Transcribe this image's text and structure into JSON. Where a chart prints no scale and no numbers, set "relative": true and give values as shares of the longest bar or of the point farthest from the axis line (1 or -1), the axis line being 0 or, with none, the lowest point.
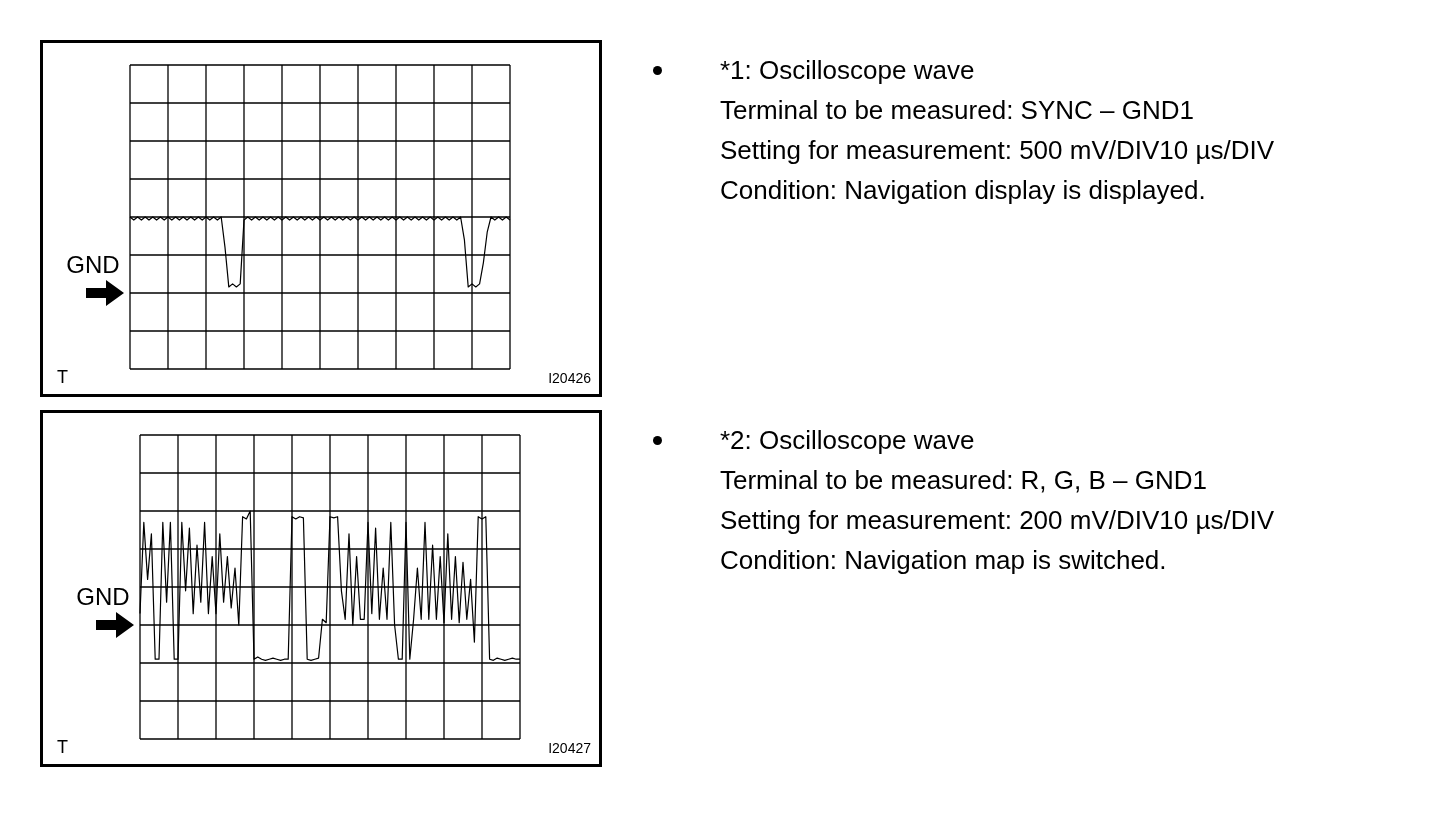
{
  "chart_data": [
    {
      "type": "line",
      "relative": true,
      "grid": true,
      "color": "#000000",
      "categories": [
        null,
        null,
        null,
        null,
        null,
        null,
        null,
        null,
        null,
        null,
        null,
        null,
        null,
        null,
        null,
        null,
        null,
        null,
        null,
        null,
        null,
        null,
        null,
        null,
        null,
        null,
        null,
        null,
        null,
        null,
        null,
        null,
        null,
        null,
        null,
        null,
        null,
        null,
        null,
        null,
        null,
        null,
        null,
        null,
        null,
        null,
        null,
        null,
        null,
        null,
        null,
        null,
        null,
        null,
        null,
        null,
        null,
        null,
        null,
        null,
        null,
        null,
        null,
        null,
        null,
        null,
        null,
        null,
        null,
        null,
        null,
        null,
        null,
        null,
        null,
        null,
        null,
        null,
        null,
        null,
        null,
        null,
        null,
        null,
        null,
        null,
        null,
        null,
        null,
        null,
        null,
        null,
        null,
        null,
        null,
        null,
        null,
        null,
        null,
        null,
        null
      ],
      "values": [
        1,
        0.96,
        1,
        0.96,
        1,
        0.96,
        1,
        0.96,
        1,
        0.96,
        1,
        0.96,
        1,
        0.96,
        1,
        0.96,
        1,
        0.96,
        1,
        0.96,
        1,
        0.96,
        1,
        0.96,
        1,
        0.6,
        0.08,
        0.12,
        0.08,
        0.12,
        0.96,
        1,
        0.96,
        1,
        0.96,
        1,
        0.96,
        1,
        0.96,
        1,
        0.96,
        1,
        0.96,
        1,
        0.96,
        1,
        0.96,
        1,
        0.96,
        1,
        0.96,
        1,
        0.96,
        1,
        0.96,
        1,
        0.96,
        1,
        0.96,
        1,
        0.96,
        1,
        0.96,
        1,
        0.96,
        1,
        0.96,
        1,
        0.96,
        1,
        0.96,
        1,
        0.96,
        1,
        0.96,
        1,
        0.96,
        1,
        0.96,
        1,
        0.96,
        1,
        0.96,
        1,
        0.96,
        1,
        0.96,
        1,
        0.7,
        0.08,
        0.12,
        0.08,
        0.12,
        0.4,
        0.8,
        1,
        0.96,
        1,
        0.96,
        1,
        0.96
      ],
      "annotations": [
        "GND",
        "T",
        "I20426",
        "*1: Oscilloscope wave",
        "Terminal to be measured: SYNC – GND1",
        "Setting for measurement: 500 mV/DIV10 µs/DIV",
        "Condition: Navigation display is displayed."
      ]
    },
    {
      "type": "line",
      "relative": true,
      "grid": true,
      "color": "#000000",
      "categories": [
        null,
        null,
        null,
        null,
        null,
        null,
        null,
        null,
        null,
        null,
        null,
        null,
        null,
        null,
        null,
        null,
        null,
        null,
        null,
        null,
        null,
        null,
        null,
        null,
        null,
        null,
        null,
        null,
        null,
        null,
        null,
        null,
        null,
        null,
        null,
        null,
        null,
        null,
        null,
        null,
        null,
        null,
        null,
        null,
        null,
        null,
        null,
        null,
        null,
        null,
        null,
        null,
        null,
        null,
        null,
        null,
        null,
        null,
        null,
        null,
        null,
        null,
        null,
        null,
        null,
        null,
        null,
        null,
        null,
        null,
        null,
        null,
        null,
        null,
        null,
        null,
        null,
        null,
        null,
        null,
        null,
        null,
        null,
        null,
        null,
        null,
        null,
        null,
        null,
        null,
        null,
        null,
        null,
        null,
        null,
        null,
        null,
        null,
        null,
        null,
        null
      ],
      "values": [
        0.1,
        0.9,
        0.4,
        0.8,
        -0.3,
        -0.3,
        0.9,
        0.2,
        0.9,
        -0.3,
        -0.3,
        0.9,
        0.3,
        0.85,
        0.1,
        0.7,
        0.2,
        0.9,
        0.1,
        0.6,
        0.1,
        0.8,
        0.2,
        0.6,
        0.15,
        0.5,
        0,
        0.95,
        0.93,
        1,
        -0.3,
        -0.28,
        -0.3,
        -0.31,
        -0.3,
        -0.29,
        -0.3,
        -0.31,
        -0.3,
        -0.3,
        0.95,
        0.93,
        0.95,
        0.94,
        -0.3,
        -0.31,
        -0.3,
        -0.29,
        0.05,
        0.02,
        0.95,
        0.94,
        0.95,
        0.3,
        0.05,
        0.8,
        0,
        0.6,
        0.05,
        0.05,
        0.9,
        0.1,
        0.85,
        0.05,
        0.5,
        0.05,
        0.9,
        0,
        -0.3,
        -0.3,
        0.9,
        -0.3,
        0.05,
        0.5,
        0.05,
        0.9,
        0.05,
        0.7,
        0.05,
        0.6,
        0.02,
        0.8,
        0.05,
        0.6,
        0.02,
        0.55,
        0.05,
        0.4,
        -0.15,
        0.95,
        0.93,
        0.95,
        -0.3,
        -0.31,
        -0.29,
        -0.3,
        -0.31,
        -0.3,
        -0.29,
        -0.3,
        -0.3
      ],
      "annotations": [
        "GND",
        "T",
        "I20427",
        "*2: Oscilloscope wave",
        "Terminal to be measured: R, G, B – GND1",
        "Setting for measurement: 200 mV/DIV10 µs/DIV",
        "Condition: Navigation map is switched."
      ]
    }
  ]
}
